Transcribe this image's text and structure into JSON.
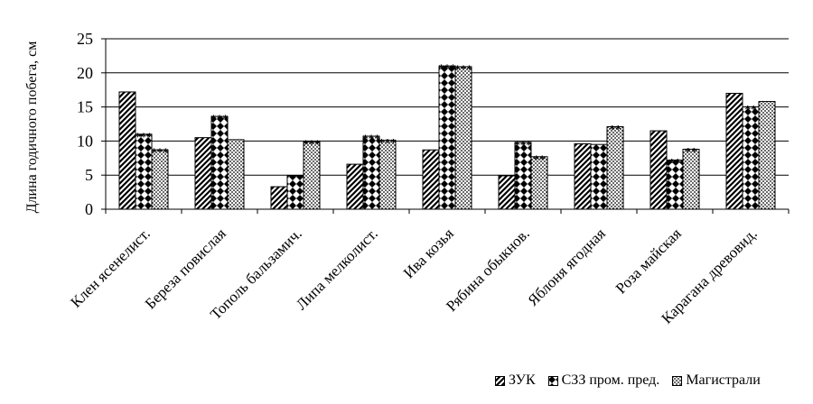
{
  "chart_data": {
    "type": "bar",
    "title": "",
    "ylabel": "Длина годичного побега, см",
    "xlabel": "",
    "ylim": [
      0,
      25
    ],
    "yticks": [
      0,
      5,
      10,
      15,
      20,
      25
    ],
    "grid": true,
    "legend_position": "bottom-right",
    "categories": [
      "Клен ясенелист.",
      "Береза повислая",
      "Тополь бальзамич.",
      "Липа мелколист.",
      "Ива козья",
      "Рябина обыкнов.",
      "Яблоня ягодная",
      "Роза майская",
      "Карагана древовид."
    ],
    "series": [
      {
        "name": "ЗУК",
        "pattern": "diagonal",
        "values": [
          17.2,
          10.5,
          3.3,
          6.6,
          8.7,
          4.9,
          9.6,
          11.5,
          17.0
        ],
        "labels": [
          "",
          "",
          "",
          "",
          "",
          "",
          "",
          "",
          ""
        ]
      },
      {
        "name": "СЗЗ пром. пред.",
        "pattern": "diamond",
        "values": [
          11.0,
          13.6,
          4.9,
          10.7,
          21.0,
          9.8,
          9.5,
          7.2,
          15.0
        ],
        "labels": [
          "***",
          "***",
          "",
          "***",
          "***",
          "***",
          "",
          "**",
          "**"
        ]
      },
      {
        "name": "Магистрали",
        "pattern": "dots",
        "values": [
          8.7,
          10.2,
          9.9,
          10.1,
          20.9,
          7.7,
          12.1,
          8.8,
          15.8
        ],
        "labels": [
          "***",
          "",
          "***",
          "***",
          "***",
          "**",
          "**",
          "**",
          ""
        ]
      }
    ]
  },
  "colors": {
    "bar_fill": "#ffffff",
    "ink": "#000000"
  }
}
